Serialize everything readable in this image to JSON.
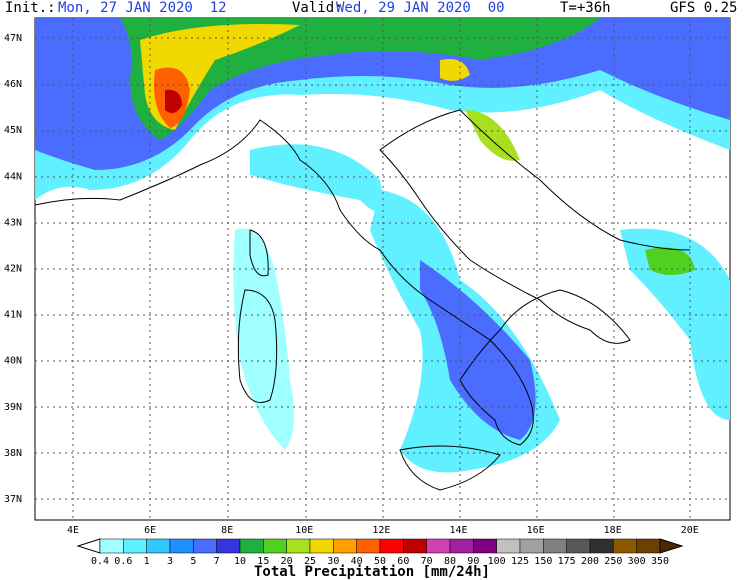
{
  "header": {
    "init_label": "Init.:",
    "init_time": "Mon, 27 JAN 2020  12",
    "valid_label": "Valid:",
    "valid_time": "Wed, 29 JAN 2020  00",
    "lead": "T=+36h",
    "model": "GFS 0.25"
  },
  "map": {
    "lat_labels": [
      "47N",
      "46N",
      "45N",
      "44N",
      "43N",
      "42N",
      "41N",
      "40N",
      "39N",
      "38N",
      "37N"
    ],
    "lon_labels": [
      "4E",
      "6E",
      "8E",
      "10E",
      "12E",
      "14E",
      "16E",
      "18E",
      "20E"
    ]
  },
  "legend": {
    "title": "Total Precipitation [mm/24h]",
    "levels": [
      0.4,
      0.6,
      1,
      3,
      5,
      7,
      10,
      15,
      20,
      25,
      30,
      40,
      50,
      60,
      70,
      80,
      90,
      100,
      125,
      150,
      175,
      200,
      250,
      300,
      350
    ],
    "colors": [
      "#a0ffff",
      "#60f0ff",
      "#30c8ff",
      "#1e90ff",
      "#4a6cff",
      "#3434e0",
      "#20b040",
      "#50d020",
      "#a8e020",
      "#f0d800",
      "#ffa000",
      "#ff6000",
      "#ff0000",
      "#c00000",
      "#d040b0",
      "#a020a0",
      "#800080",
      "#c0c0c0",
      "#a0a0a0",
      "#808080",
      "#585858",
      "#303030",
      "#8b5a00",
      "#6b4000",
      "#4a2a00"
    ]
  }
}
